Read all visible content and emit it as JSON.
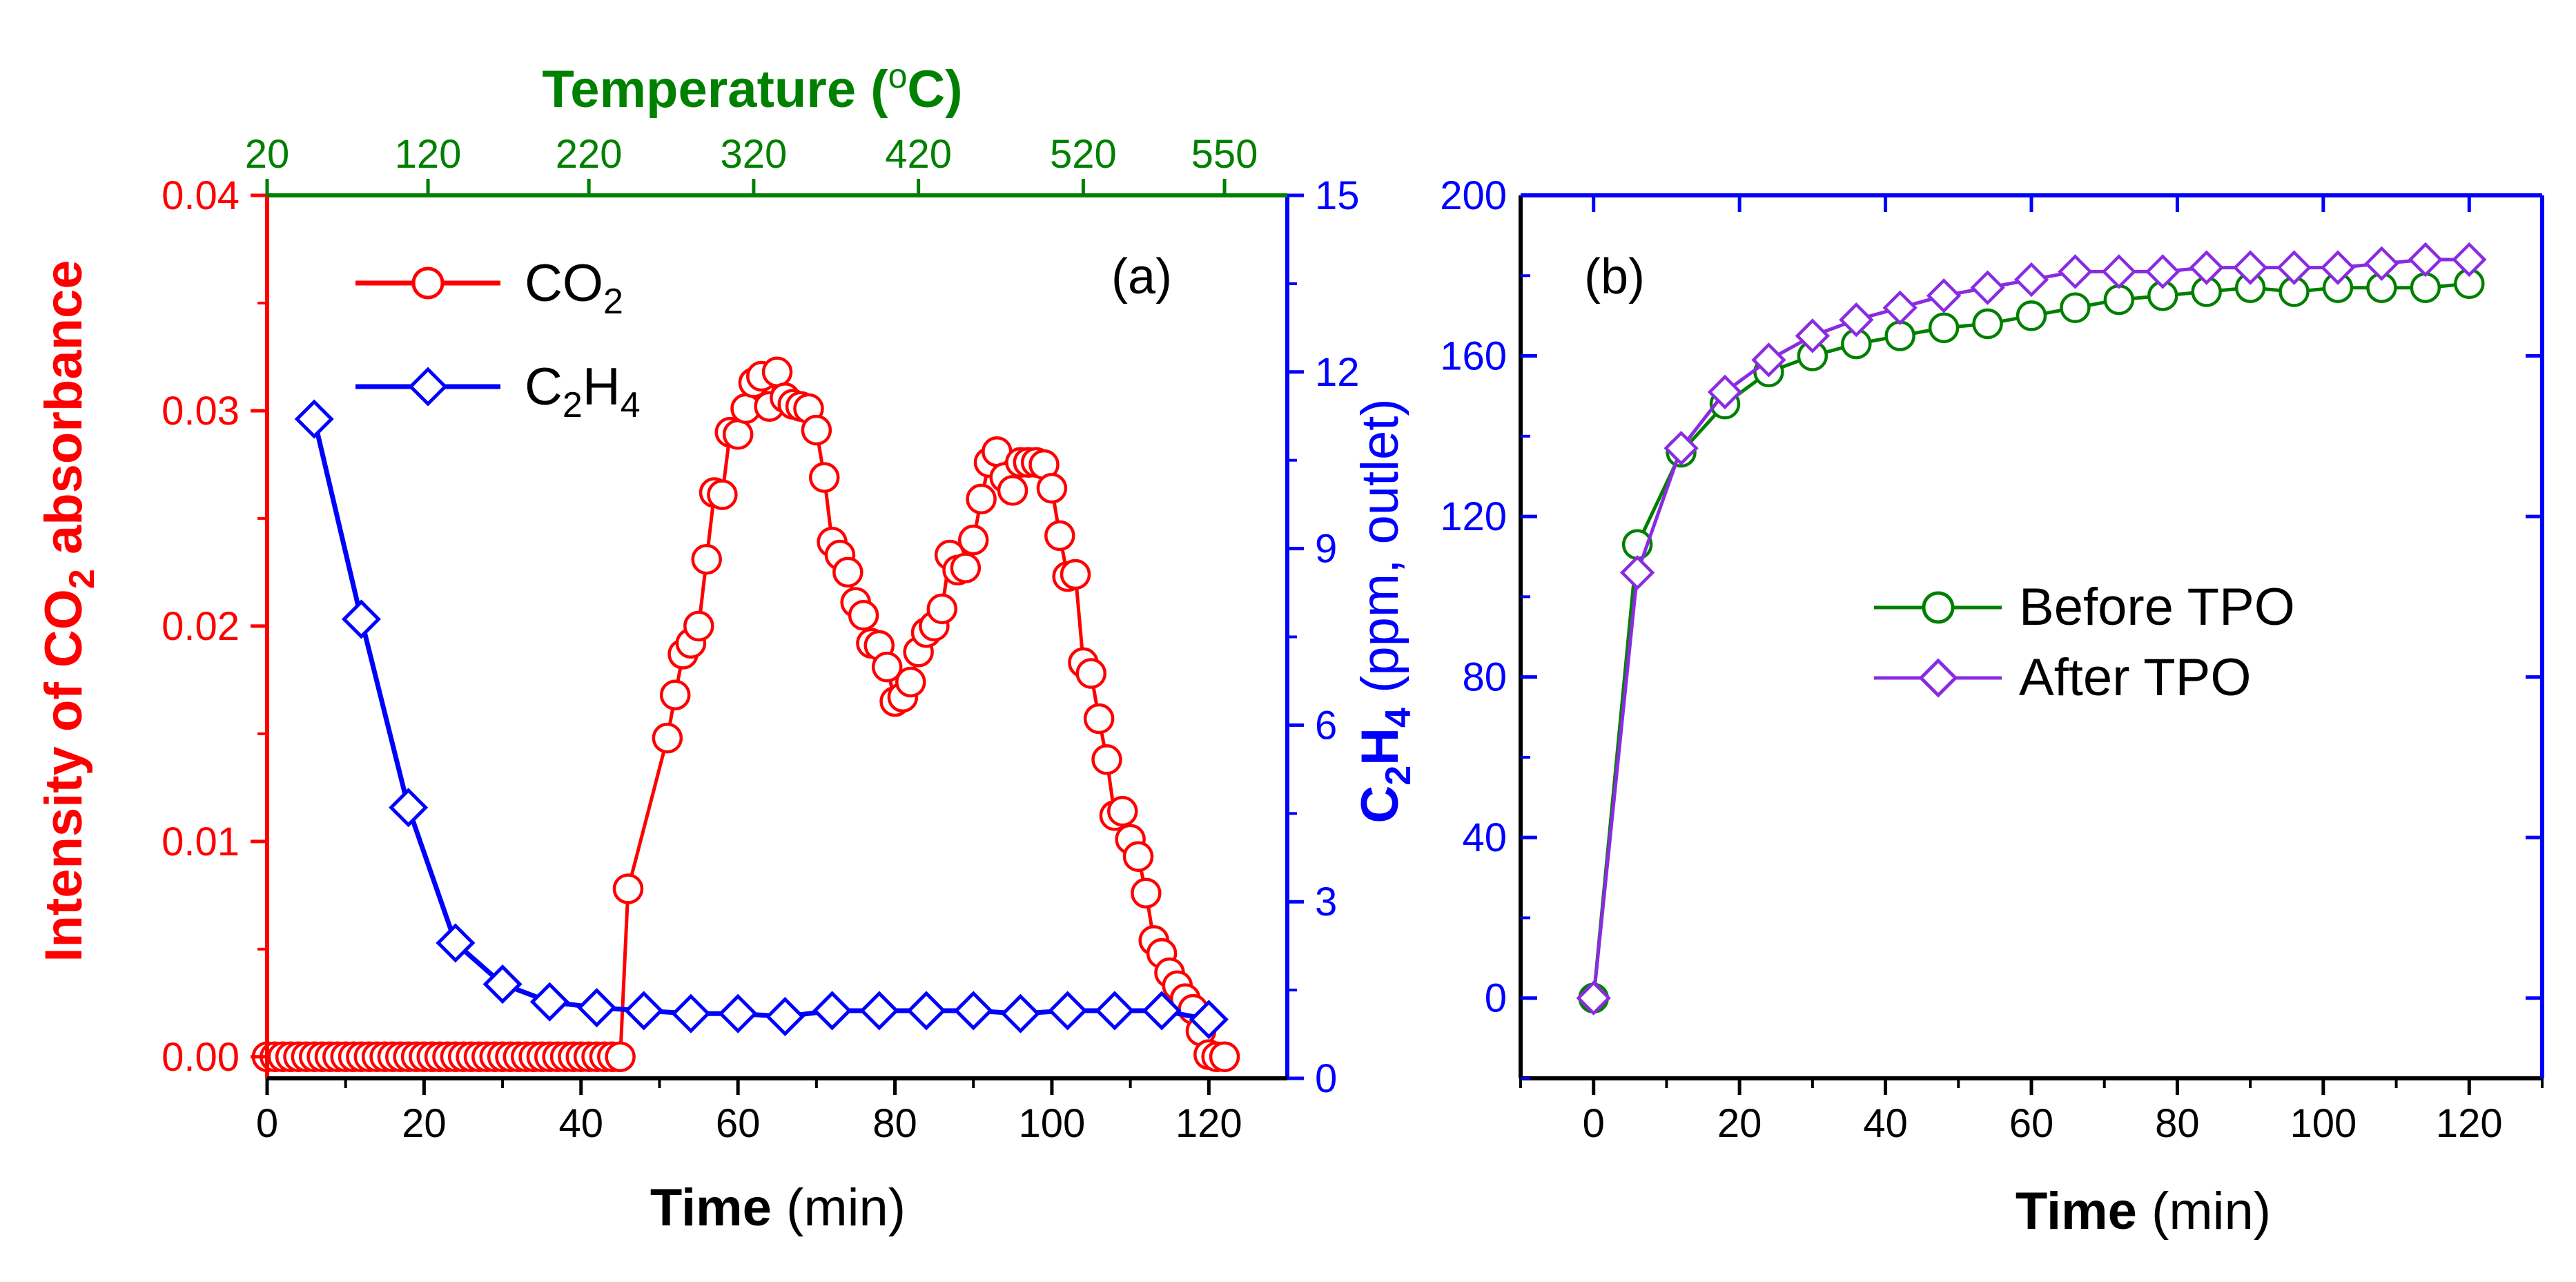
{
  "colors": {
    "co2": "#ff0000",
    "c2h4": "#0000ff",
    "temp": "#008000",
    "before": "#008000",
    "after": "#8a2be2",
    "frame": "#000000"
  },
  "chart_data": [
    {
      "type": "line",
      "panel_label": "(a)",
      "xlabel_bold": "Time",
      "xlabel_unit": " (min)",
      "xlim": [
        0,
        130
      ],
      "xticks": [
        0,
        20,
        40,
        60,
        80,
        100,
        120
      ],
      "ylabel_left": {
        "pre": "Intensity of CO",
        "sub": "2",
        "post": " absorbance"
      },
      "ylim_left": [
        -0.001,
        0.04
      ],
      "yticks_left": [
        "0.00",
        "0.01",
        "0.02",
        "0.03",
        "0.04"
      ],
      "ylabel_right": {
        "bold1": "C",
        "sub1": "2",
        "bold2": "H",
        "sub2": "4",
        "rest": " (ppm, outlet)"
      },
      "ylim_right": [
        0,
        15
      ],
      "yticks_right": [
        0,
        3,
        6,
        9,
        12,
        15
      ],
      "top_axis": {
        "label": "Temperature (",
        "label_sup": "o",
        "label_end": "C)",
        "ticks": [
          {
            "t": 0,
            "label": "20"
          },
          {
            "t": 20.5,
            "label": "120"
          },
          {
            "t": 41,
            "label": "220"
          },
          {
            "t": 62,
            "label": "320"
          },
          {
            "t": 83,
            "label": "420"
          },
          {
            "t": 104,
            "label": "520"
          },
          {
            "t": 122,
            "label": "550"
          }
        ]
      },
      "legend": [
        {
          "name_main": "CO",
          "name_sub": "2",
          "name_rest": ""
        },
        {
          "name_main": "C",
          "name_sub": "2",
          "name_rest": "H",
          "name_sub2": "4"
        }
      ],
      "series": [
        {
          "name": "CO2",
          "axis": "left",
          "marker": "circle",
          "x": [
            0,
            1,
            2,
            3,
            4,
            5,
            6,
            7,
            8,
            9,
            10,
            11,
            12,
            13,
            14,
            15,
            16,
            17,
            18,
            19,
            20,
            21,
            22,
            23,
            24,
            25,
            26,
            27,
            28,
            29,
            30,
            31,
            32,
            33,
            34,
            35,
            36,
            37,
            38,
            39,
            40,
            41,
            42,
            43,
            44,
            45,
            46,
            51,
            52,
            53,
            54,
            55,
            56,
            57,
            58,
            59,
            60,
            61,
            62,
            63,
            64,
            65,
            66,
            67,
            68,
            69,
            70,
            71,
            72,
            73,
            74,
            75,
            76,
            77,
            78,
            79,
            80,
            81,
            82,
            83,
            84,
            85,
            86,
            87,
            88,
            89,
            90,
            91,
            92,
            93,
            94,
            95,
            96,
            97,
            98,
            99,
            100,
            101,
            102,
            103,
            104,
            105,
            106,
            107,
            108,
            109,
            110,
            111,
            112,
            113,
            114,
            115,
            116,
            117,
            118,
            119,
            120,
            121,
            122
          ],
          "y": [
            0,
            0,
            0,
            0,
            0,
            0,
            0,
            0,
            0,
            0,
            0,
            0,
            0,
            0,
            0,
            0,
            0,
            0,
            0,
            0,
            0,
            0,
            0,
            0,
            0,
            0,
            0,
            0,
            0,
            0,
            0,
            0,
            0,
            0,
            0,
            0,
            0,
            0,
            0,
            0,
            0,
            0,
            0,
            0,
            0,
            0,
            0.0078,
            0.0148,
            0.0168,
            0.0187,
            0.0192,
            0.02,
            0.0231,
            0.0262,
            0.0261,
            0.029,
            0.0289,
            0.0301,
            0.0313,
            0.0316,
            0.0302,
            0.0318,
            0.0306,
            0.0303,
            0.0302,
            0.0301,
            0.0291,
            0.0269,
            0.0239,
            0.0233,
            0.0225,
            0.0211,
            0.0205,
            0.0192,
            0.0191,
            0.0181,
            0.0165,
            0.0167,
            0.0174,
            0.0188,
            0.0197,
            0.02,
            0.0208,
            0.0233,
            0.0226,
            0.0227,
            0.024,
            0.0259,
            0.0276,
            0.0281,
            0.0269,
            0.0263,
            0.0276,
            0.0276,
            0.0276,
            0.0275,
            0.0264,
            0.0242,
            0.0223,
            0.0224,
            0.0183,
            0.0178,
            0.0157,
            0.0138,
            0.0112,
            0.0114,
            0.0101,
            0.0093,
            0.0076,
            0.0054,
            0.0048,
            0.0039,
            0.0033,
            0.0027,
            0.0022,
            0.0012,
            0.0001,
            0,
            0
          ]
        },
        {
          "name": "C2H4",
          "axis": "right",
          "marker": "diamond",
          "x": [
            6,
            12,
            18,
            24,
            30,
            36,
            42,
            48,
            54,
            60,
            66,
            72,
            78,
            84,
            90,
            96,
            102,
            108,
            114,
            120
          ],
          "y": [
            11.2,
            7.8,
            4.6,
            2.3,
            1.6,
            1.3,
            1.2,
            1.15,
            1.1,
            1.1,
            1.05,
            1.15,
            1.15,
            1.15,
            1.15,
            1.1,
            1.15,
            1.15,
            1.15,
            1.0
          ]
        }
      ]
    },
    {
      "type": "line",
      "panel_label": "(b)",
      "xlabel_bold": "Time",
      "xlabel_unit": " (min)",
      "xlim": [
        -10,
        130
      ],
      "xticks": [
        0,
        20,
        40,
        60,
        80,
        100,
        120
      ],
      "ylim": [
        -20,
        200
      ],
      "yticks": [
        0,
        40,
        80,
        120,
        160,
        200
      ],
      "legend": [
        {
          "name": "Before TPO"
        },
        {
          "name": "After TPO"
        }
      ],
      "series": [
        {
          "name": "Before TPO",
          "marker": "circle",
          "x": [
            0,
            6,
            12,
            18,
            24,
            30,
            36,
            42,
            48,
            54,
            60,
            66,
            72,
            78,
            84,
            90,
            96,
            102,
            108,
            114,
            120
          ],
          "y": [
            0,
            113,
            136,
            148,
            156,
            160,
            163,
            165,
            167,
            168,
            170,
            172,
            174,
            175,
            176,
            177,
            176,
            177,
            177,
            177,
            178
          ]
        },
        {
          "name": "After TPO",
          "marker": "diamond",
          "x": [
            0,
            6,
            12,
            18,
            24,
            30,
            36,
            42,
            48,
            54,
            60,
            66,
            72,
            78,
            84,
            90,
            96,
            102,
            108,
            114,
            120
          ],
          "y": [
            0,
            106,
            137,
            151,
            159,
            165,
            169,
            172,
            175,
            177,
            179,
            181,
            181,
            181,
            182,
            182,
            182,
            182,
            183,
            184,
            184
          ]
        }
      ]
    }
  ]
}
